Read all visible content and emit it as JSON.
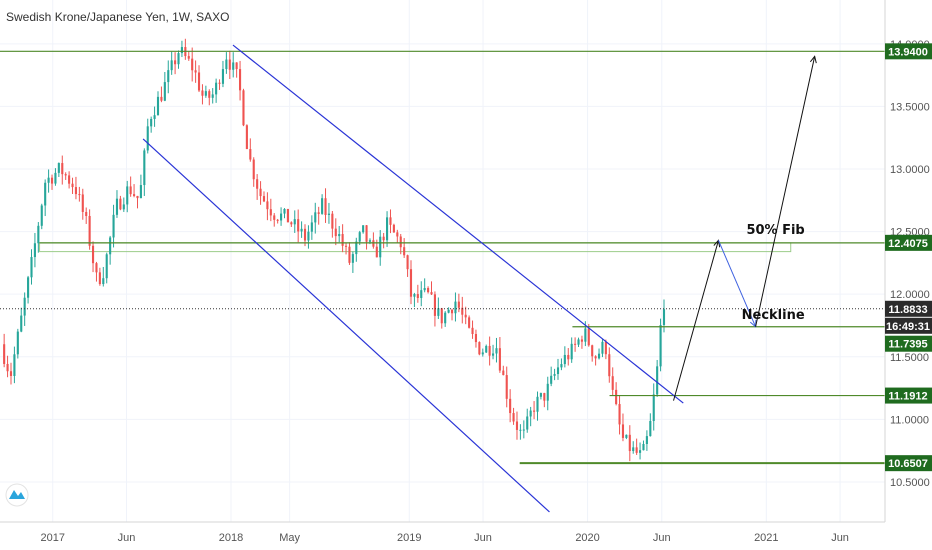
{
  "colors": {
    "up": "#26a69a",
    "down": "#ef5350",
    "level_line": "#4f8a2a",
    "tag_bg": "#1f6b1f",
    "last_tag_bg": "#2b2b2b",
    "channel": "#2a34d6",
    "projection_up": "#111111",
    "projection_down": "#3f62e0",
    "axis_text": "#555555"
  },
  "chart_data": {
    "type": "candlestick",
    "title": "Swedish Krone/Japanese Yen, 1W, SAXO",
    "x_axis": {
      "tick_labels": [
        "2017",
        "Jun",
        "2018",
        "May",
        "2019",
        "Jun",
        "2020",
        "Jun",
        "2021",
        "Jun"
      ],
      "tick_dates": [
        "2017-01-01",
        "2017-06-01",
        "2018-01-01",
        "2018-05-01",
        "2019-01-01",
        "2019-06-01",
        "2020-01-01",
        "2020-06-01",
        "2021-01-01",
        "2021-06-01"
      ],
      "range": [
        "2016-09-15",
        "2021-09-01"
      ]
    },
    "y_axis": {
      "tick_labels": [
        "10.5000",
        "11.0000",
        "11.5000",
        "12.0000",
        "12.5000",
        "13.0000",
        "13.5000",
        "14.0000"
      ],
      "tick_values": [
        10.5,
        11.0,
        11.5,
        12.0,
        12.5,
        13.0,
        13.5,
        14.0
      ],
      "range": [
        10.18,
        14.35
      ]
    },
    "price_path": [
      [
        "2016-09-20",
        11.6
      ],
      [
        "2016-10-10",
        11.35
      ],
      [
        "2016-11-01",
        11.8
      ],
      [
        "2016-11-25",
        12.3
      ],
      [
        "2016-12-20",
        12.9
      ],
      [
        "2017-01-20",
        13.0
      ],
      [
        "2017-02-20",
        12.85
      ],
      [
        "2017-03-15",
        12.55
      ],
      [
        "2017-04-05",
        12.1
      ],
      [
        "2017-04-20",
        12.2
      ],
      [
        "2017-05-15",
        12.7
      ],
      [
        "2017-06-10",
        12.85
      ],
      [
        "2017-07-01",
        12.75
      ],
      [
        "2017-07-20",
        13.4
      ],
      [
        "2017-08-15",
        13.6
      ],
      [
        "2017-09-20",
        13.95
      ],
      [
        "2017-10-20",
        13.8
      ],
      [
        "2017-11-10",
        13.55
      ],
      [
        "2017-12-01",
        13.6
      ],
      [
        "2017-12-25",
        13.92
      ],
      [
        "2018-01-20",
        13.7
      ],
      [
        "2018-02-10",
        13.1
      ],
      [
        "2018-03-05",
        12.8
      ],
      [
        "2018-04-01",
        12.65
      ],
      [
        "2018-05-01",
        12.6
      ],
      [
        "2018-06-05",
        12.45
      ],
      [
        "2018-07-10",
        12.7
      ],
      [
        "2018-08-10",
        12.5
      ],
      [
        "2018-09-05",
        12.25
      ],
      [
        "2018-10-01",
        12.5
      ],
      [
        "2018-10-25",
        12.3
      ],
      [
        "2018-11-20",
        12.55
      ],
      [
        "2018-12-20",
        12.4
      ],
      [
        "2019-01-10",
        11.95
      ],
      [
        "2019-02-10",
        12.0
      ],
      [
        "2019-03-10",
        11.8
      ],
      [
        "2019-04-10",
        11.95
      ],
      [
        "2019-05-05",
        11.7
      ],
      [
        "2019-06-01",
        11.55
      ],
      [
        "2019-07-01",
        11.6
      ],
      [
        "2019-08-01",
        11.05
      ],
      [
        "2019-08-25",
        10.85
      ],
      [
        "2019-09-15",
        11.1
      ],
      [
        "2019-10-10",
        11.2
      ],
      [
        "2019-11-10",
        11.45
      ],
      [
        "2019-12-05",
        11.55
      ],
      [
        "2019-12-28",
        11.7
      ],
      [
        "2020-01-20",
        11.5
      ],
      [
        "2020-02-10",
        11.6
      ],
      [
        "2020-02-25",
        11.2
      ],
      [
        "2020-03-15",
        10.85
      ],
      [
        "2020-04-05",
        10.75
      ],
      [
        "2020-04-25",
        10.7
      ],
      [
        "2020-05-10",
        10.9
      ],
      [
        "2020-05-25",
        11.35
      ],
      [
        "2020-06-05",
        11.88
      ]
    ],
    "levels": [
      {
        "tag": "13.9400",
        "value": 13.94,
        "from": "2016-09-15",
        "width": 1.2
      },
      {
        "tag": "12.4075",
        "value": 12.41,
        "from": "2016-12-05",
        "width": 1.2,
        "zone_bottom": 12.34
      },
      {
        "tag": "11.7395",
        "value": 11.74,
        "from": "2019-12-01",
        "width": 1.2
      },
      {
        "tag": "11.1912",
        "value": 11.19,
        "from": "2020-02-15",
        "width": 1.2
      },
      {
        "tag": "10.6507",
        "value": 10.65,
        "from": "2019-08-15",
        "width": 2
      }
    ],
    "current_price": {
      "tag": "11.8833",
      "value": 11.8833,
      "countdown": "16:49:31"
    },
    "channel": {
      "upper": [
        [
          "2018-01-05",
          13.99
        ],
        [
          "2020-07-15",
          11.13
        ]
      ],
      "lower": [
        [
          "2017-07-05",
          13.24
        ],
        [
          "2019-10-15",
          10.26
        ]
      ]
    },
    "projection": {
      "up_first": [
        [
          "2020-06-25",
          11.15
        ],
        [
          "2020-09-25",
          12.43
        ]
      ],
      "down": [
        [
          "2020-09-25",
          12.43
        ],
        [
          "2020-12-10",
          11.74
        ]
      ],
      "up_second": [
        [
          "2020-12-10",
          11.74
        ],
        [
          "2021-04-10",
          13.9
        ]
      ]
    },
    "annotations": {
      "fib": {
        "text": "50% Fib",
        "x": "2021-01-20",
        "y": 12.48
      },
      "neckline": {
        "text": "Neckline",
        "x": "2021-01-15",
        "y": 11.8
      }
    }
  }
}
